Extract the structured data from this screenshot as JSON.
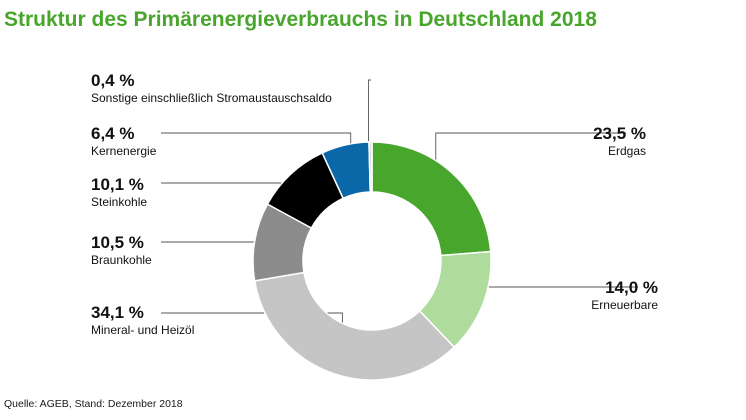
{
  "title": "Struktur des Primärenergieverbrauchs in Deutschland 2018",
  "source": "Quelle: AGEB, Stand: Dezember 2018",
  "chart_data": {
    "type": "pie",
    "title": "Struktur des Primärenergieverbrauchs in Deutschland 2018",
    "donut": true,
    "slices": [
      {
        "name": "Erdgas",
        "value": 23.5,
        "label": "23,5 %",
        "color": "#49a62d"
      },
      {
        "name": "Erneuerbare",
        "value": 14.0,
        "label": "14,0 %",
        "color": "#addc9c"
      },
      {
        "name": "Mineral- und Heizöl",
        "value": 34.1,
        "label": "34,1 %",
        "color": "#c5c5c5"
      },
      {
        "name": "Braunkohle",
        "value": 10.5,
        "label": "10,5 %",
        "color": "#8c8c8c"
      },
      {
        "name": "Steinkohle",
        "value": 10.1,
        "label": "10,1 %",
        "color": "#000000"
      },
      {
        "name": "Kernenergie",
        "value": 6.4,
        "label": "6,4 %",
        "color": "#0a67a8"
      },
      {
        "name": "Sonstige einschließlich Stromaustauschsaldo",
        "value": 0.4,
        "label": "0,4 %",
        "color": "#dddddd"
      }
    ]
  }
}
